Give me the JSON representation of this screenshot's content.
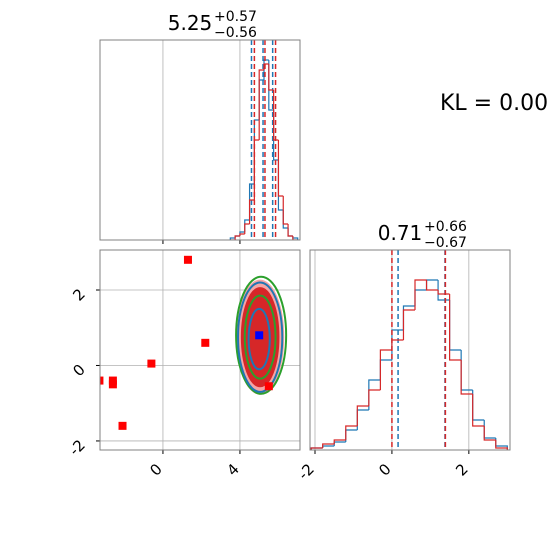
{
  "chart_data": [
    {
      "type": "histogram",
      "title": "5.25",
      "title_sup": "+0.57",
      "title_sub": "−0.56",
      "xlim": [
        -3.27,
        7.12
      ],
      "xticks": [
        0,
        4
      ],
      "ylim": [
        0,
        1
      ],
      "grid": true,
      "bins": [
        3.5,
        3.75,
        4.0,
        4.25,
        4.5,
        4.75,
        5.0,
        5.25,
        5.5,
        5.75,
        6.0,
        6.25,
        6.5,
        6.75,
        7.0
      ],
      "series": [
        {
          "color": "#1f77b4",
          "values": [
            0.01,
            0.02,
            0.04,
            0.1,
            0.28,
            0.6,
            0.8,
            0.9,
            0.65,
            0.4,
            0.15,
            0.06,
            0.02,
            0.01
          ],
          "quantiles": [
            4.6,
            5.2,
            5.7
          ]
        },
        {
          "color": "#d62728",
          "values": [
            0.0,
            0.02,
            0.03,
            0.08,
            0.2,
            0.5,
            0.85,
            0.88,
            0.75,
            0.5,
            0.22,
            0.08,
            0.02,
            0.0
          ],
          "quantiles": [
            4.75,
            5.3,
            5.85
          ]
        }
      ]
    },
    {
      "type": "scatter",
      "xlim": [
        -3.27,
        7.12
      ],
      "xticks": [
        0,
        4
      ],
      "ylim": [
        -2.24,
        3.06
      ],
      "yticks": [
        -2,
        0,
        2
      ],
      "grid": true,
      "contours": [
        {
          "color": "#f4a6a6",
          "fill": true,
          "cx": 5.05,
          "cy": 0.75,
          "rx": 1.2,
          "ry": 1.5
        },
        {
          "color": "#d62728",
          "fill": true,
          "cx": 5.05,
          "cy": 0.75,
          "rx": 0.95,
          "ry": 1.3
        },
        {
          "color": "#2ca02c",
          "fill": false,
          "cx": 5.1,
          "cy": 0.8,
          "rx": 1.3,
          "ry": 1.55
        },
        {
          "color": "#1f77b4",
          "fill": false,
          "cx": 5.05,
          "cy": 0.75,
          "rx": 1.15,
          "ry": 1.45
        },
        {
          "color": "#2ca02c",
          "fill": false,
          "cx": 5.05,
          "cy": 0.75,
          "rx": 0.8,
          "ry": 1.1
        },
        {
          "color": "#1f77b4",
          "fill": false,
          "cx": 5.0,
          "cy": 0.7,
          "rx": 0.55,
          "ry": 0.8
        }
      ],
      "series": [
        {
          "color": "#ff0000",
          "x": [
            -3.3,
            -2.6,
            -2.6,
            -2.1,
            -0.6,
            1.3,
            2.2,
            5.5
          ],
          "values": [
            -0.4,
            -0.4,
            -0.5,
            -1.6,
            0.05,
            2.8,
            0.6,
            -0.55
          ]
        },
        {
          "color": "#0000ff",
          "x": [
            5.0
          ],
          "values": [
            0.8
          ]
        }
      ]
    },
    {
      "type": "histogram",
      "title": "0.71",
      "title_sup": "+0.66",
      "title_sub": "−0.67",
      "xlim": [
        -2.13,
        3.07
      ],
      "xticks": [
        -2,
        0,
        2
      ],
      "ylim": [
        0,
        1
      ],
      "grid": true,
      "bins": [
        -2.1,
        -1.8,
        -1.5,
        -1.2,
        -0.9,
        -0.6,
        -0.3,
        0.0,
        0.3,
        0.6,
        0.9,
        1.2,
        1.5,
        1.8,
        2.1,
        2.4,
        2.7,
        3.0
      ],
      "series": [
        {
          "color": "#1f77b4",
          "values": [
            0.01,
            0.02,
            0.04,
            0.1,
            0.2,
            0.35,
            0.45,
            0.6,
            0.72,
            0.8,
            0.85,
            0.75,
            0.5,
            0.3,
            0.15,
            0.06,
            0.02
          ],
          "quantiles": [
            0.16,
            1.38
          ]
        },
        {
          "color": "#d62728",
          "values": [
            0.01,
            0.03,
            0.05,
            0.12,
            0.22,
            0.3,
            0.5,
            0.55,
            0.7,
            0.85,
            0.8,
            0.78,
            0.45,
            0.28,
            0.12,
            0.05,
            0.01
          ],
          "quantiles": [
            0.0,
            1.39
          ]
        }
      ]
    },
    {
      "type": "annotation",
      "text": "KL = 0.00"
    }
  ]
}
